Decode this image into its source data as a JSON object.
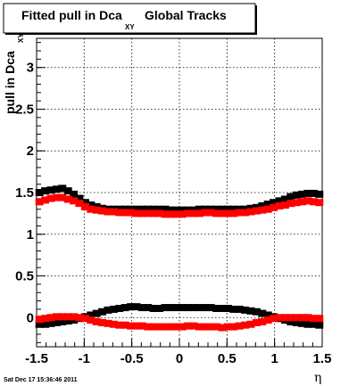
{
  "chart_data": {
    "type": "scatter",
    "title": {
      "main": "Fitted pull in Dca",
      "subscript": "XY",
      "suffix": "Global Tracks"
    },
    "xlabel": "η",
    "ylabel": {
      "main": "pull in Dca",
      "subscript": "XY"
    },
    "xlim": [
      -1.5,
      1.5
    ],
    "ylim": [
      -0.35,
      3.35
    ],
    "grid": true,
    "x_ticks": [
      "-1.5",
      "-1",
      "-0.5",
      "0",
      "0.5",
      "1",
      "1.5"
    ],
    "y_ticks": [
      "0",
      "0.5",
      "1",
      "1.5",
      "2",
      "2.5",
      "3"
    ],
    "x_tick_values": [
      -1.5,
      -1,
      -0.5,
      0,
      0.5,
      1,
      1.5
    ],
    "y_tick_values": [
      0,
      0.5,
      1,
      1.5,
      2,
      2.5,
      3
    ],
    "colors": {
      "series_black": "#000000",
      "series_red": "#ff0000"
    },
    "series": [
      {
        "color": "black",
        "x": [
          -1.47,
          -1.41,
          -1.35,
          -1.29,
          -1.23,
          -1.17,
          -1.11,
          -1.05,
          -0.99,
          -0.93,
          -0.87,
          -0.81,
          -0.75,
          -0.69,
          -0.63,
          -0.57,
          -0.51,
          -0.45,
          -0.39,
          -0.33,
          -0.27,
          -0.21,
          -0.15,
          -0.09,
          -0.03,
          0.03,
          0.09,
          0.15,
          0.21,
          0.27,
          0.33,
          0.39,
          0.45,
          0.51,
          0.57,
          0.63,
          0.69,
          0.75,
          0.81,
          0.87,
          0.93,
          0.99,
          1.05,
          1.11,
          1.17,
          1.23,
          1.29,
          1.35,
          1.41,
          1.47
        ],
        "y": [
          1.5,
          1.52,
          1.53,
          1.54,
          1.55,
          1.52,
          1.48,
          1.43,
          1.38,
          1.35,
          1.33,
          1.31,
          1.3,
          1.3,
          1.3,
          1.3,
          1.3,
          1.3,
          1.3,
          1.3,
          1.3,
          1.3,
          1.3,
          1.29,
          1.29,
          1.29,
          1.29,
          1.29,
          1.3,
          1.3,
          1.3,
          1.3,
          1.3,
          1.3,
          1.3,
          1.3,
          1.3,
          1.31,
          1.32,
          1.34,
          1.36,
          1.38,
          1.4,
          1.42,
          1.45,
          1.47,
          1.48,
          1.49,
          1.49,
          1.48
        ]
      },
      {
        "color": "red",
        "x": [
          -1.47,
          -1.41,
          -1.35,
          -1.29,
          -1.23,
          -1.17,
          -1.11,
          -1.05,
          -0.99,
          -0.93,
          -0.87,
          -0.81,
          -0.75,
          -0.69,
          -0.63,
          -0.57,
          -0.51,
          -0.45,
          -0.39,
          -0.33,
          -0.27,
          -0.21,
          -0.15,
          -0.09,
          -0.03,
          0.03,
          0.09,
          0.15,
          0.21,
          0.27,
          0.33,
          0.39,
          0.45,
          0.51,
          0.57,
          0.63,
          0.69,
          0.75,
          0.81,
          0.87,
          0.93,
          0.99,
          1.05,
          1.11,
          1.17,
          1.23,
          1.29,
          1.35,
          1.41,
          1.47
        ],
        "y": [
          1.39,
          1.41,
          1.43,
          1.44,
          1.44,
          1.42,
          1.4,
          1.37,
          1.33,
          1.3,
          1.29,
          1.28,
          1.27,
          1.27,
          1.26,
          1.26,
          1.26,
          1.25,
          1.25,
          1.25,
          1.25,
          1.25,
          1.24,
          1.24,
          1.24,
          1.24,
          1.25,
          1.25,
          1.25,
          1.26,
          1.26,
          1.25,
          1.25,
          1.25,
          1.25,
          1.26,
          1.26,
          1.27,
          1.28,
          1.29,
          1.3,
          1.32,
          1.34,
          1.35,
          1.37,
          1.38,
          1.39,
          1.4,
          1.39,
          1.38
        ]
      },
      {
        "color": "black",
        "x": [
          -1.47,
          -1.41,
          -1.35,
          -1.29,
          -1.23,
          -1.17,
          -1.11,
          -1.05,
          -0.99,
          -0.93,
          -0.87,
          -0.81,
          -0.75,
          -0.69,
          -0.63,
          -0.57,
          -0.51,
          -0.45,
          -0.39,
          -0.33,
          -0.27,
          -0.21,
          -0.15,
          -0.09,
          -0.03,
          0.03,
          0.09,
          0.15,
          0.21,
          0.27,
          0.33,
          0.39,
          0.45,
          0.51,
          0.57,
          0.63,
          0.69,
          0.75,
          0.81,
          0.87,
          0.93,
          0.99,
          1.05,
          1.11,
          1.17,
          1.23,
          1.29,
          1.35,
          1.41,
          1.47
        ],
        "y": [
          -0.08,
          -0.08,
          -0.07,
          -0.06,
          -0.05,
          -0.04,
          -0.03,
          -0.01,
          0.01,
          0.03,
          0.05,
          0.07,
          0.09,
          0.1,
          0.11,
          0.12,
          0.13,
          0.13,
          0.12,
          0.12,
          0.11,
          0.11,
          0.12,
          0.12,
          0.12,
          0.12,
          0.12,
          0.12,
          0.12,
          0.12,
          0.12,
          0.11,
          0.11,
          0.11,
          0.1,
          0.1,
          0.09,
          0.08,
          0.07,
          0.05,
          0.03,
          0.01,
          -0.01,
          -0.03,
          -0.05,
          -0.06,
          -0.07,
          -0.08,
          -0.08,
          -0.09
        ]
      },
      {
        "color": "red",
        "x": [
          -1.47,
          -1.41,
          -1.35,
          -1.29,
          -1.23,
          -1.17,
          -1.11,
          -1.05,
          -0.99,
          -0.93,
          -0.87,
          -0.81,
          -0.75,
          -0.69,
          -0.63,
          -0.57,
          -0.51,
          -0.45,
          -0.39,
          -0.33,
          -0.27,
          -0.21,
          -0.15,
          -0.09,
          -0.03,
          0.03,
          0.09,
          0.15,
          0.21,
          0.27,
          0.33,
          0.39,
          0.45,
          0.51,
          0.57,
          0.63,
          0.69,
          0.75,
          0.81,
          0.87,
          0.93,
          0.99,
          1.05,
          1.11,
          1.17,
          1.23,
          1.29,
          1.35,
          1.41,
          1.47
        ],
        "y": [
          -0.02,
          -0.01,
          0.0,
          0.01,
          0.01,
          0.01,
          0.01,
          0.0,
          -0.01,
          -0.03,
          -0.05,
          -0.06,
          -0.07,
          -0.08,
          -0.09,
          -0.09,
          -0.1,
          -0.1,
          -0.1,
          -0.11,
          -0.11,
          -0.11,
          -0.11,
          -0.11,
          -0.11,
          -0.11,
          -0.1,
          -0.1,
          -0.11,
          -0.11,
          -0.11,
          -0.11,
          -0.12,
          -0.11,
          -0.11,
          -0.1,
          -0.09,
          -0.08,
          -0.06,
          -0.05,
          -0.03,
          -0.01,
          0.0,
          0.0,
          0.0,
          0.0,
          0.0,
          0.0,
          -0.01,
          -0.01
        ]
      }
    ]
  },
  "footer": {
    "date": "Sat Dec 17 15:36:46 2011"
  }
}
